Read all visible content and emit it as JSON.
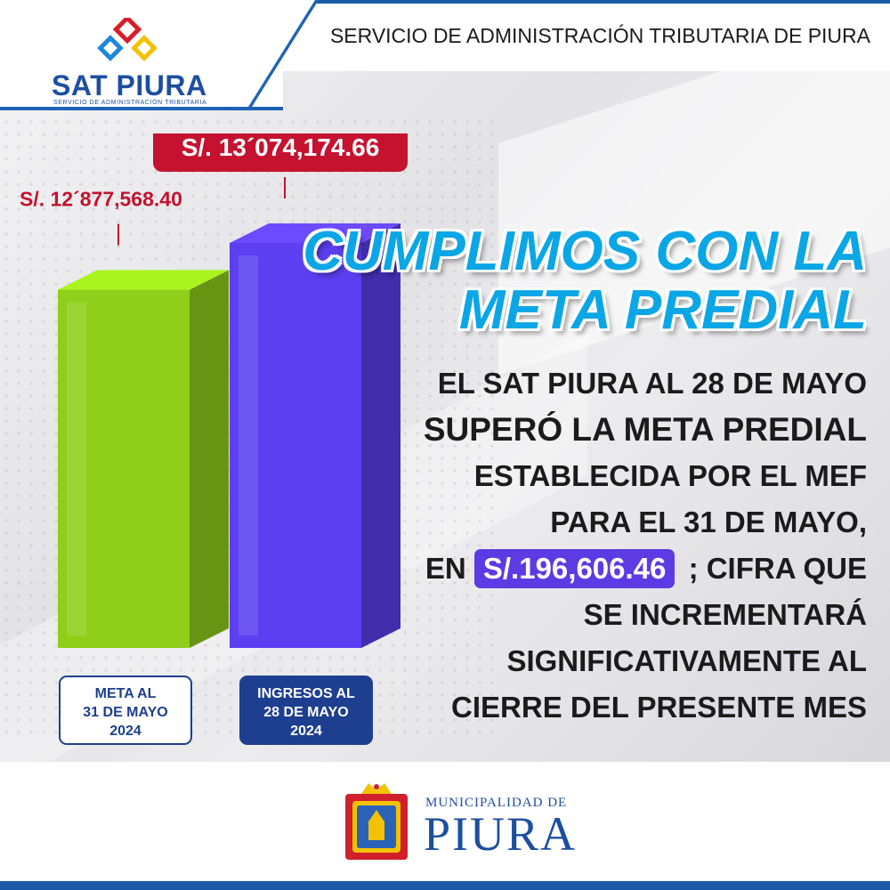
{
  "header": {
    "title": "SERVICIO DE ADMINISTRACIÓN TRIBUTARIA DE PIURA",
    "logo_name": "SAT PIURA",
    "logo_subtitle": "SERVICIO DE ADMINISTRACIÓN TRIBUTARIA"
  },
  "headline": {
    "line1": "CUMPLIMOS CON LA",
    "line2": "META PREDIAL"
  },
  "body": {
    "line1": "EL SAT PIURA AL 28 DE MAYO",
    "line2": "SUPERÓ LA META PREDIAL",
    "line3": "ESTABLECIDA POR EL MEF",
    "line4": "PARA EL 31 DE MAYO,",
    "line5_prefix": "EN",
    "amount": "S/.196,606.46",
    "line5_suffix": "; CIFRA QUE",
    "line6": "SE INCREMENTARÁ",
    "line7": "SIGNIFICATIVAMENTE AL",
    "line8": "CIERRE DEL PRESENTE MES"
  },
  "chart_data": {
    "type": "bar",
    "categories": [
      "META AL 31 DE MAYO 2024",
      "INGRESOS AL 28 DE MAYO 2024"
    ],
    "category_lines": [
      [
        "META AL",
        "31 DE MAYO",
        "2024"
      ],
      [
        "INGRESOS AL",
        "28 DE MAYO",
        "2024"
      ]
    ],
    "values": [
      12877568.4,
      13074174.66
    ],
    "value_labels": [
      "S/. 12´877,568.40",
      "S/. 13´074,174.66"
    ],
    "bar_colors": [
      "#8fcf1a",
      "#5b3ff0"
    ],
    "label_color": "#c4122f",
    "category_box_colors": [
      "#ffffff",
      "#1e3f8f"
    ]
  },
  "footer": {
    "municipality_small": "MUNICIPALIDAD DE",
    "municipality_big": "PIURA"
  },
  "colors": {
    "brand_blue": "#1d4fa0",
    "headline_cyan": "#0aa6e6",
    "badge_purple": "#5c3be4"
  }
}
